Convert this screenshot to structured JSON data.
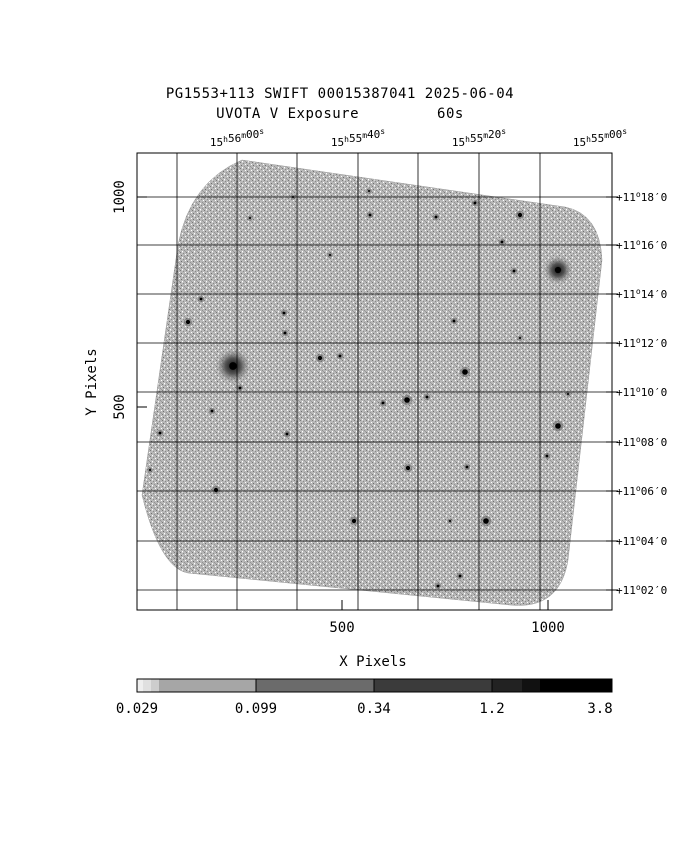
{
  "title": {
    "line1": "PG1553+113 SWIFT 00015387041 2025-06-04",
    "line2_left": "UVOTA V Exposure",
    "line2_right": "60s"
  },
  "axes": {
    "x_label": "X Pixels",
    "y_label": "Y Pixels",
    "x_ticks": [
      "500",
      "1000"
    ],
    "y_ticks": [
      "500",
      "1000"
    ],
    "ra_ticks": [
      {
        "h": "15",
        "m": "56",
        "s": "00"
      },
      {
        "h": "15",
        "m": "55",
        "s": "40"
      },
      {
        "h": "15",
        "m": "55",
        "s": "20"
      },
      {
        "h": "15",
        "m": "55",
        "s": "00"
      }
    ],
    "dec_ticks": [
      {
        "d": "+11",
        "m": "18",
        "s": "0"
      },
      {
        "d": "+11",
        "m": "16",
        "s": "0"
      },
      {
        "d": "+11",
        "m": "14",
        "s": "0"
      },
      {
        "d": "+11",
        "m": "12",
        "s": "0"
      },
      {
        "d": "+11",
        "m": "10",
        "s": "0"
      },
      {
        "d": "+11",
        "m": "08",
        "s": "0"
      },
      {
        "d": "+11",
        "m": "06",
        "s": "0"
      },
      {
        "d": "+11",
        "m": "04",
        "s": "0"
      },
      {
        "d": "+11",
        "m": "02",
        "s": "0"
      }
    ]
  },
  "colorbar": {
    "labels": [
      "0.029",
      "0.099",
      "0.34",
      "1.2",
      "3.8"
    ]
  },
  "colors": {
    "background": "#ffffff",
    "field": "#a8a8a8",
    "grid": "#000000"
  }
}
